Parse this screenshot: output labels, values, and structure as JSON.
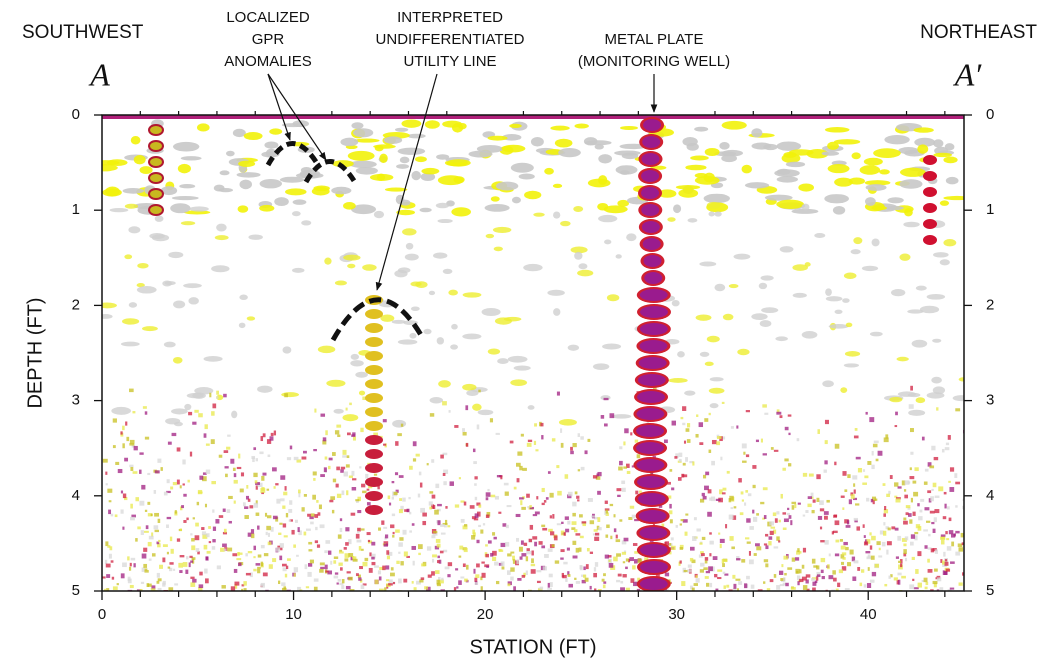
{
  "chart_data": {
    "type": "radargram",
    "left_label": "SOUTHWEST",
    "right_label": "NORTHEAST",
    "left_letter": "A",
    "right_letter": "A′",
    "annotations": [
      {
        "lines": [
          "LOCALIZED",
          "GPR",
          "ANOMALIES"
        ]
      },
      {
        "lines": [
          "INTERPRETED",
          "UNDIFFERENTIATED",
          "UTILITY LINE"
        ]
      },
      {
        "lines": [
          "METAL PLATE",
          "(MONITORING WELL)"
        ]
      }
    ],
    "xlabel": "STATION (FT)",
    "ylabel": "DEPTH (FT)",
    "xlim": [
      0,
      45
    ],
    "xticks": [
      0,
      10,
      20,
      30,
      40
    ],
    "x_minor_ticks": [
      2,
      4,
      6,
      8,
      12,
      14,
      16,
      18,
      22,
      24,
      26,
      28,
      32,
      34,
      36,
      38,
      42,
      44
    ],
    "ylim": [
      0,
      5
    ],
    "yticks": [
      0,
      1,
      2,
      3,
      4,
      5
    ],
    "y_inverted": true
  }
}
